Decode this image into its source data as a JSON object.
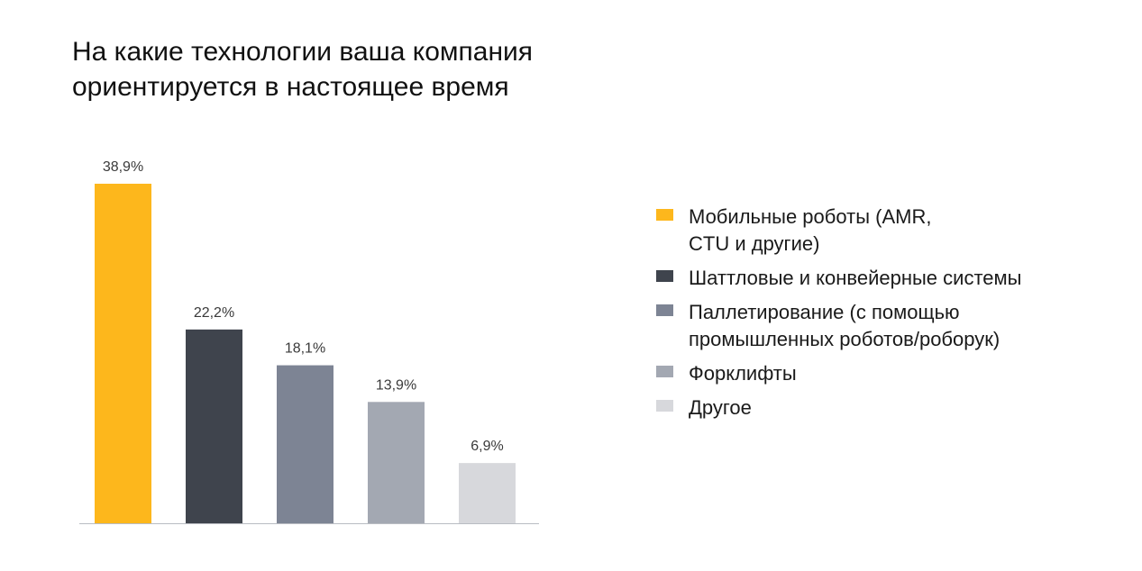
{
  "title": {
    "line1": "На какие технологии ваша компания",
    "line2": "ориентируется в настоящее время"
  },
  "chart_data": {
    "type": "bar",
    "title": "На какие технологии ваша компания ориентируется в настоящее время",
    "categories": [
      "Мобильные роботы (AMR,\nCTU и другие)",
      "Шаттловые и конвейерные системы",
      "Паллетирование (с помощью\nпромышленных роботов/роборук)",
      "Форклифты",
      "Другое"
    ],
    "values": [
      38.9,
      22.2,
      18.1,
      13.9,
      6.9
    ],
    "value_labels": [
      "38,9%",
      "22,2%",
      "18,1%",
      "13,9%",
      "6,9%"
    ],
    "colors": [
      "#FDB71C",
      "#3F444D",
      "#7D8494",
      "#A3A8B2",
      "#D7D8DC"
    ],
    "ylim": [
      0,
      38.9
    ],
    "grid": false,
    "legend_position": "right"
  }
}
